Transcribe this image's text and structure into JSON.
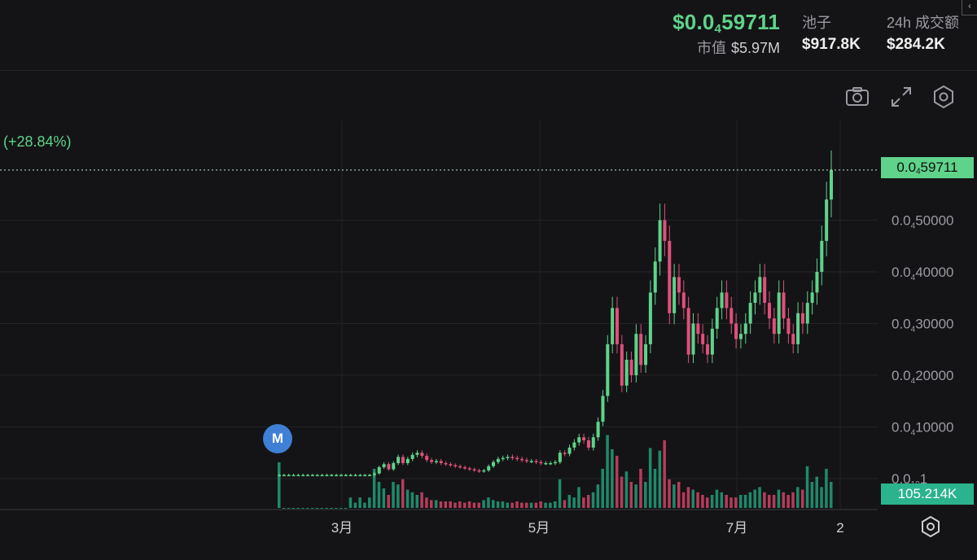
{
  "header": {
    "price_prefix": "$0.0",
    "price_sub": "4",
    "price_rest": "59711",
    "mcap_label": "市值",
    "mcap_value": "$5.97M",
    "pool_label": "池子",
    "pool_value": "$917.8K",
    "volume_label": "24h 成交额",
    "volume_value": "$284.2K"
  },
  "toolbar": {
    "icons": [
      "camera-icon",
      "expand-icon",
      "settings-icon"
    ]
  },
  "change_percent": "(+28.84%)",
  "price_tag": {
    "prefix": "0.0",
    "sub": "4",
    "rest": "59711"
  },
  "volume_tag": "105.214K",
  "marker_label": "M",
  "colors": {
    "up": "#5fd38a",
    "down": "#e0507a",
    "marker": "#3f7fd6",
    "background": "#141416"
  },
  "chart_data": {
    "type": "candlestick",
    "x_ticks": [
      "3月",
      "5月",
      "7月",
      "2"
    ],
    "y_ticks": [
      {
        "prefix": "0.0",
        "sub": "4",
        "rest": "50000",
        "value": 5e-06
      },
      {
        "prefix": "0.0",
        "sub": "4",
        "rest": "40000",
        "value": 4e-06
      },
      {
        "prefix": "0.0",
        "sub": "4",
        "rest": "30000",
        "value": 3e-06
      },
      {
        "prefix": "0.0",
        "sub": "4",
        "rest": "20000",
        "value": 2e-06
      },
      {
        "prefix": "0.0",
        "sub": "4",
        "rest": "10000",
        "value": 1e-06
      },
      {
        "prefix": "0.0",
        "sub": "19",
        "rest": "1",
        "value": 0.0
      }
    ],
    "ylim": [
      0,
      6.6e-06
    ],
    "last_price": 5.9711e-06,
    "close_series": [
      0.07,
      0.07,
      0.07,
      0.07,
      0.07,
      0.07,
      0.07,
      0.07,
      0.07,
      0.07,
      0.07,
      0.07,
      0.07,
      0.07,
      0.07,
      0.07,
      0.07,
      0.07,
      0.07,
      0.07,
      0.1,
      0.22,
      0.28,
      0.18,
      0.3,
      0.42,
      0.3,
      0.38,
      0.46,
      0.5,
      0.44,
      0.36,
      0.32,
      0.34,
      0.3,
      0.28,
      0.26,
      0.24,
      0.22,
      0.2,
      0.18,
      0.16,
      0.14,
      0.16,
      0.24,
      0.32,
      0.38,
      0.4,
      0.42,
      0.4,
      0.38,
      0.36,
      0.34,
      0.34,
      0.32,
      0.3,
      0.3,
      0.3,
      0.32,
      0.5,
      0.48,
      0.6,
      0.7,
      0.8,
      0.74,
      0.6,
      0.8,
      1.1,
      1.6,
      2.6,
      3.3,
      2.6,
      1.8,
      2.3,
      2.0,
      2.8,
      2.2,
      2.6,
      3.6,
      4.2,
      5.0,
      4.6,
      3.2,
      3.9,
      3.6,
      3.3,
      2.4,
      3.0,
      2.8,
      2.6,
      2.4,
      2.9,
      3.3,
      3.6,
      3.3,
      3.0,
      2.7,
      2.8,
      3.0,
      3.4,
      3.6,
      3.9,
      3.4,
      3.1,
      2.8,
      3.6,
      3.1,
      2.8,
      2.6,
      3.2,
      3.0,
      3.4,
      3.6,
      4.0,
      4.6,
      5.4,
      5.9711
    ],
    "volume_series": [
      0.35,
      0,
      0,
      0,
      0,
      0,
      0,
      0,
      0,
      0,
      0,
      0,
      0,
      0,
      0,
      0.08,
      0.04,
      0.08,
      0.04,
      0.08,
      0.3,
      0.2,
      0.15,
      0.1,
      0.2,
      0.18,
      0.22,
      0.14,
      0.12,
      0.1,
      0.12,
      0.08,
      0.06,
      0.06,
      0.05,
      0.05,
      0.05,
      0.04,
      0.05,
      0.04,
      0.05,
      0.04,
      0.04,
      0.06,
      0.08,
      0.06,
      0.05,
      0.05,
      0.04,
      0.04,
      0.05,
      0.04,
      0.04,
      0.04,
      0.04,
      0.05,
      0.04,
      0.04,
      0.05,
      0.22,
      0.06,
      0.1,
      0.08,
      0.16,
      0.08,
      0.1,
      0.12,
      0.18,
      0.3,
      0.56,
      0.45,
      0.4,
      0.24,
      0.28,
      0.2,
      0.18,
      0.3,
      0.2,
      0.46,
      0.3,
      0.44,
      0.52,
      0.22,
      0.18,
      0.2,
      0.12,
      0.16,
      0.14,
      0.12,
      0.1,
      0.08,
      0.1,
      0.14,
      0.12,
      0.1,
      0.08,
      0.08,
      0.1,
      0.1,
      0.12,
      0.14,
      0.16,
      0.12,
      0.1,
      0.1,
      0.14,
      0.12,
      0.1,
      0.12,
      0.16,
      0.14,
      0.32,
      0.2,
      0.24,
      0.16,
      0.3,
      0.2
    ]
  }
}
